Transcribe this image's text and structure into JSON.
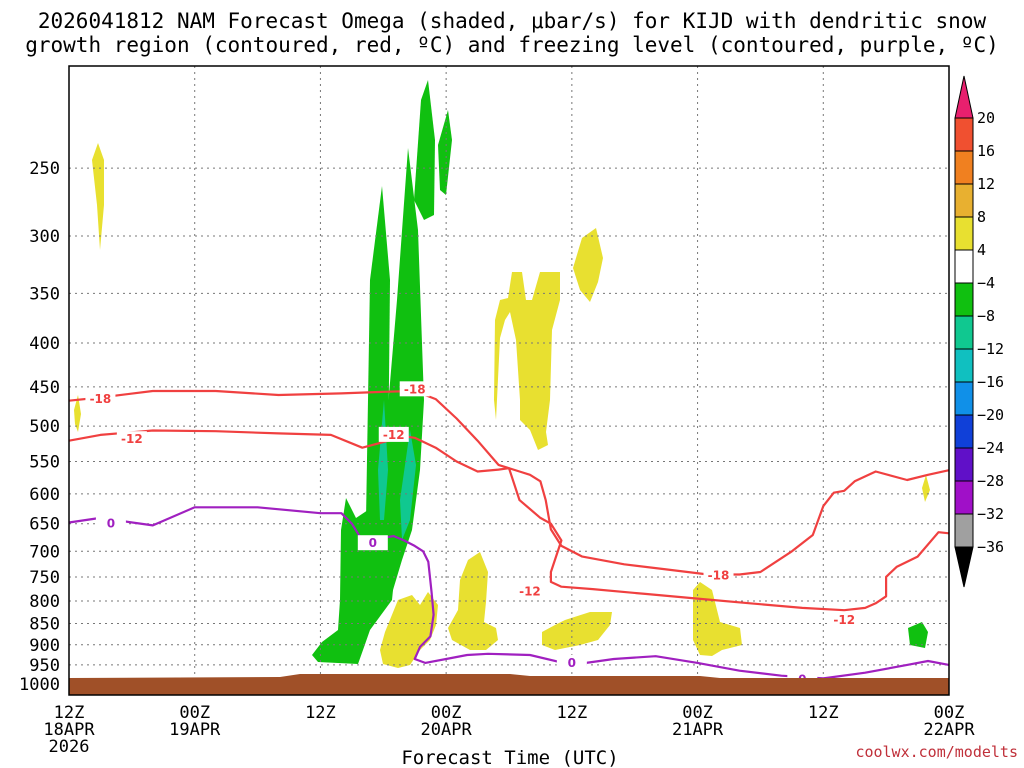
{
  "chart_data": {
    "type": "heatmap",
    "title_lines": [
      "2026041812 NAM Forecast Omega (shaded, μbar/s) for KIJD with dendritic snow",
      "growth region (contoured, red, ºC) and freezing level (contoured, purple, ºC)"
    ],
    "xlabel": "Forecast Time (UTC)",
    "credit": "coolwx.com/modelts",
    "x_range_hours": [
      0,
      84
    ],
    "y_range_hpa": [
      1030,
      190
    ],
    "y_ticks": [
      250,
      300,
      350,
      400,
      450,
      500,
      550,
      600,
      650,
      700,
      750,
      800,
      850,
      900,
      950,
      1000
    ],
    "x_ticks": [
      {
        "h": 0,
        "lines": [
          "12Z",
          "18APR",
          "2026"
        ]
      },
      {
        "h": 12,
        "lines": [
          "00Z",
          "19APR"
        ]
      },
      {
        "h": 24,
        "lines": [
          "12Z",
          ""
        ]
      },
      {
        "h": 36,
        "lines": [
          "00Z",
          "20APR"
        ]
      },
      {
        "h": 48,
        "lines": [
          "12Z",
          ""
        ]
      },
      {
        "h": 60,
        "lines": [
          "00Z",
          "21APR"
        ]
      },
      {
        "h": 72,
        "lines": [
          "12Z",
          ""
        ]
      },
      {
        "h": 84,
        "lines": [
          "00Z",
          "22APR"
        ]
      }
    ],
    "colorbar": {
      "labels": [
        "20",
        "16",
        "12",
        "8",
        "4",
        "−4",
        "−8",
        "−12",
        "−16",
        "−20",
        "−24",
        "−28",
        "−32",
        "−36"
      ],
      "colors": [
        "#e8206e",
        "#f05030",
        "#f08020",
        "#e8b030",
        "#e8e030",
        "#ffffff",
        "#10c010",
        "#10c890",
        "#10c0c0",
        "#1090e8",
        "#1040d8",
        "#6010c8",
        "#a010c8",
        "#a0a0a0",
        "#000000"
      ]
    },
    "shading_colors": {
      "pos4": "#e8e030",
      "neg4": "#10c010",
      "neg8": "#10c890",
      "ground": "#a05028"
    },
    "series": [
      {
        "name": "-18",
        "color": "#f04040",
        "labels": [
          [
            3,
            465
          ],
          [
            33,
            453
          ],
          [
            62,
            747
          ]
        ],
        "x": [
          0,
          3,
          8,
          14,
          20,
          26,
          30,
          33,
          35,
          37,
          39,
          41,
          43,
          44,
          45,
          45.5,
          46,
          47,
          49,
          53,
          57,
          61,
          64,
          66,
          69,
          71,
          72,
          73,
          74,
          75,
          77,
          80,
          82,
          84
        ],
        "y": [
          467,
          463,
          455,
          455,
          460,
          458,
          456,
          455,
          465,
          490,
          520,
          555,
          565,
          570,
          580,
          610,
          660,
          690,
          710,
          725,
          735,
          745,
          745,
          740,
          700,
          670,
          620,
          598,
          595,
          580,
          565,
          578,
          570,
          563
        ]
      },
      {
        "name": "-12",
        "color": "#f04040",
        "labels": [
          [
            6,
            518
          ],
          [
            31,
            512
          ],
          [
            44,
            780
          ],
          [
            74,
            842
          ]
        ],
        "x": [
          0,
          3,
          8,
          14,
          20,
          25,
          28,
          30,
          31,
          32,
          33,
          35,
          37,
          39,
          41,
          42,
          43,
          45,
          46,
          47,
          46,
          46,
          47,
          50,
          55,
          60,
          65,
          70,
          74,
          76,
          77,
          78,
          78,
          79,
          81,
          83,
          84
        ],
        "y": [
          520,
          512,
          506,
          507,
          510,
          512,
          530,
          522,
          518,
          514,
          516,
          530,
          550,
          565,
          562,
          560,
          610,
          640,
          650,
          680,
          740,
          760,
          770,
          775,
          785,
          795,
          805,
          815,
          820,
          815,
          805,
          790,
          750,
          730,
          710,
          665,
          667
        ]
      },
      {
        "name": "0",
        "color": "#a020c0",
        "labels": [
          [
            4,
            650
          ],
          [
            29,
            685
          ],
          [
            48,
            945
          ],
          [
            70,
            988
          ]
        ],
        "x": [
          0,
          3,
          8,
          12,
          18,
          24,
          26,
          27,
          28,
          30,
          31,
          32,
          33,
          33.8,
          34.3,
          34.6,
          34.8,
          34.5,
          33.5,
          33,
          34,
          36,
          38,
          40,
          44,
          48,
          52,
          56,
          60,
          64,
          68,
          72,
          76,
          80,
          82,
          84
        ],
        "y": [
          648,
          640,
          653,
          622,
          622,
          632,
          632,
          650,
          680,
          675,
          672,
          680,
          690,
          700,
          720,
          780,
          830,
          880,
          905,
          935,
          945,
          935,
          925,
          922,
          925,
          950,
          935,
          928,
          945,
          965,
          978,
          985,
          970,
          950,
          940,
          950
        ]
      }
    ]
  }
}
